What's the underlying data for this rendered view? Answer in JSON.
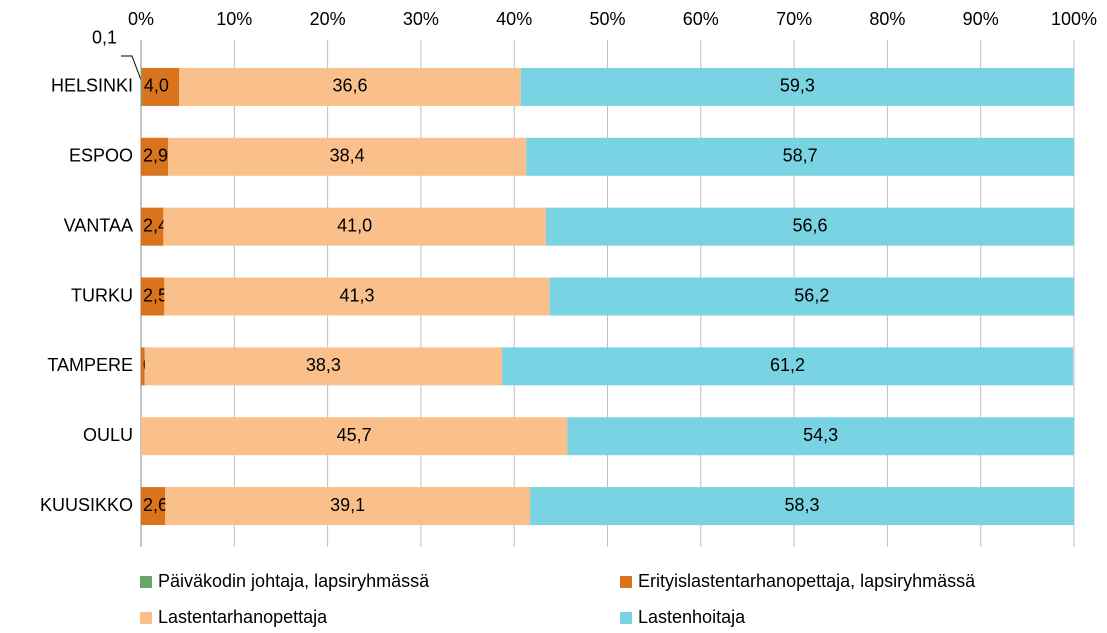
{
  "chart_data": {
    "type": "stacked-bar-horizontal",
    "categories": [
      "HELSINKI",
      "ESPOO",
      "VANTAA",
      "TURKU",
      "TAMPERE",
      "OULU",
      "KUUSIKKO"
    ],
    "series": [
      {
        "name": "Päiväkodin johtaja, lapsiryhmässä",
        "color": "#6aa56a",
        "values": [
          0.1,
          0,
          0,
          0,
          0,
          0,
          0
        ],
        "value_labels": [
          "0,1",
          null,
          null,
          null,
          null,
          null,
          null
        ]
      },
      {
        "name": "Erityislastentarhanopettaja, lapsiryhmässä",
        "color": "#d9741c",
        "values": [
          4.0,
          2.9,
          2.4,
          2.5,
          0.4,
          0,
          2.6
        ],
        "value_labels": [
          "4,0",
          "2,9",
          "2,4",
          "2,5",
          "0,4",
          null,
          "2,6"
        ]
      },
      {
        "name": "Lastentarhanopettaja",
        "color": "#f9c08b",
        "values": [
          36.6,
          38.4,
          41.0,
          41.3,
          38.3,
          45.7,
          39.1
        ],
        "value_labels": [
          "36,6",
          "38,4",
          "41,0",
          "41,3",
          "38,3",
          "45,7",
          "39,1"
        ]
      },
      {
        "name": "Lastenhoitaja",
        "color": "#79d3e3",
        "values": [
          59.3,
          58.7,
          56.6,
          56.2,
          61.2,
          54.3,
          58.3
        ],
        "value_labels": [
          "59,3",
          "58,7",
          "56,6",
          "56,2",
          "61,2",
          "54,3",
          "58,3"
        ]
      }
    ],
    "xlim": [
      0,
      100
    ],
    "xticks": [
      {
        "value": 0,
        "label": "0%"
      },
      {
        "value": 10,
        "label": "10%"
      },
      {
        "value": 20,
        "label": "20%"
      },
      {
        "value": 30,
        "label": "30%"
      },
      {
        "value": 40,
        "label": "40%"
      },
      {
        "value": 50,
        "label": "50%"
      },
      {
        "value": 60,
        "label": "60%"
      },
      {
        "value": 70,
        "label": "70%"
      },
      {
        "value": 80,
        "label": "80%"
      },
      {
        "value": 90,
        "label": "90%"
      },
      {
        "value": 100,
        "label": "100%"
      }
    ],
    "grid": true,
    "legend": "bottom"
  }
}
